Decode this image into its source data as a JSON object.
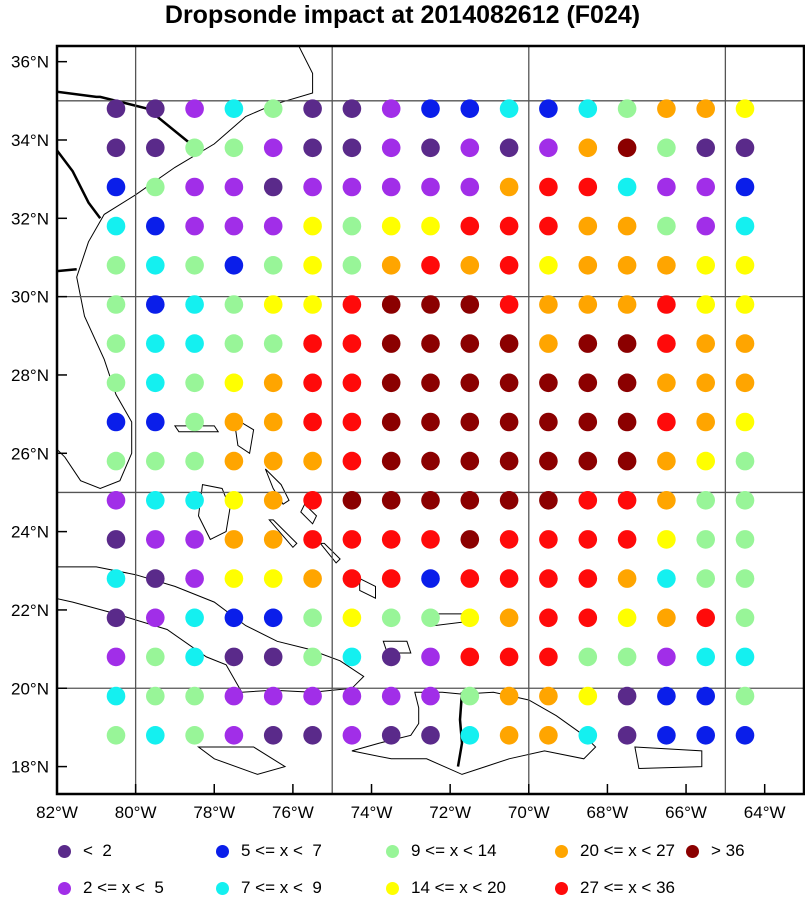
{
  "title": "Dropsonde impact at 2014082612 (F024)",
  "map": {
    "lon_ticks": [
      "82°W",
      "80°W",
      "78°W",
      "76°W",
      "74°W",
      "72°W",
      "70°W",
      "68°W",
      "66°W",
      "64°W"
    ],
    "lat_ticks": [
      "18°N",
      "20°N",
      "22°N",
      "24°N",
      "26°N",
      "28°N",
      "30°N",
      "32°N",
      "34°N",
      "36°N"
    ],
    "lon_range": [
      -82,
      -63
    ],
    "lat_range": [
      17.3,
      36.4
    ],
    "grid_lons": [
      -80,
      -75,
      -70,
      -65
    ],
    "grid_lats": [
      20,
      25,
      30,
      35
    ]
  },
  "legend": [
    {
      "label": "<  2",
      "color": "#5a2a8a"
    },
    {
      "label": "2 <= x <  5",
      "color": "#a12ee8"
    },
    {
      "label": "5 <= x <  7",
      "color": "#0a1eea"
    },
    {
      "label": "7 <= x <  9",
      "color": "#14f0f0"
    },
    {
      "label": "9 <= x < 14",
      "color": "#98f598"
    },
    {
      "label": "14 <= x < 20",
      "color": "#ffff00"
    },
    {
      "label": "20 <= x < 27",
      "color": "#ffa500"
    },
    {
      "label": "27 <= x < 36",
      "color": "#ff0a0a"
    },
    {
      "label": "> 36",
      "color": "#8b0000"
    }
  ],
  "chart_data": {
    "type": "scatter",
    "title": "Dropsonde impact at 2014082612 (F024)",
    "x_lons": [
      -80.5,
      -79.5,
      -78.5,
      -77.5,
      -76.5,
      -75.5,
      -74.5,
      -73.5,
      -72.5,
      -71.5,
      -70.5,
      -69.5,
      -68.5,
      -67.5,
      -66.5,
      -65.5,
      -64.5
    ],
    "y_lats": [
      34.8,
      33.8,
      32.8,
      31.8,
      30.8,
      29.8,
      28.8,
      27.8,
      26.8,
      25.8,
      24.8,
      23.8,
      22.8,
      21.8,
      20.8,
      19.8,
      18.8
    ],
    "categories": [
      [
        0,
        0,
        1,
        3,
        4,
        0,
        0,
        1,
        2,
        2,
        3,
        2,
        3,
        4,
        6,
        6,
        5
      ],
      [
        0,
        0,
        4,
        4,
        1,
        0,
        0,
        1,
        0,
        1,
        0,
        1,
        6,
        8,
        4,
        0,
        0
      ],
      [
        2,
        4,
        1,
        1,
        0,
        1,
        1,
        1,
        1,
        1,
        6,
        7,
        7,
        3,
        1,
        1,
        2
      ],
      [
        3,
        2,
        1,
        1,
        1,
        5,
        4,
        5,
        5,
        7,
        7,
        7,
        6,
        6,
        4,
        1,
        3
      ],
      [
        4,
        3,
        4,
        2,
        4,
        5,
        4,
        6,
        7,
        6,
        7,
        5,
        6,
        6,
        6,
        5,
        5
      ],
      [
        4,
        2,
        3,
        4,
        5,
        5,
        7,
        8,
        8,
        8,
        7,
        6,
        6,
        6,
        7,
        5,
        5
      ],
      [
        4,
        3,
        3,
        4,
        4,
        7,
        7,
        8,
        8,
        8,
        8,
        6,
        8,
        8,
        7,
        6,
        6
      ],
      [
        4,
        3,
        4,
        5,
        6,
        7,
        7,
        8,
        8,
        8,
        8,
        8,
        8,
        8,
        6,
        6,
        6
      ],
      [
        2,
        2,
        4,
        6,
        6,
        7,
        7,
        8,
        8,
        8,
        8,
        8,
        8,
        8,
        7,
        6,
        5
      ],
      [
        4,
        4,
        4,
        6,
        6,
        6,
        7,
        8,
        8,
        8,
        8,
        8,
        8,
        8,
        6,
        5,
        4
      ],
      [
        1,
        3,
        3,
        5,
        6,
        7,
        8,
        8,
        8,
        8,
        8,
        8,
        7,
        7,
        6,
        4,
        4
      ],
      [
        0,
        1,
        1,
        6,
        6,
        7,
        7,
        7,
        7,
        8,
        7,
        7,
        7,
        7,
        5,
        4,
        4
      ],
      [
        3,
        0,
        1,
        5,
        5,
        6,
        7,
        7,
        2,
        7,
        7,
        7,
        7,
        6,
        3,
        4,
        4
      ],
      [
        0,
        1,
        3,
        2,
        2,
        4,
        5,
        4,
        4,
        5,
        6,
        7,
        7,
        5,
        6,
        7,
        4
      ],
      [
        1,
        4,
        3,
        0,
        0,
        4,
        3,
        0,
        1,
        7,
        7,
        7,
        4,
        4,
        1,
        3,
        3
      ],
      [
        3,
        4,
        4,
        1,
        1,
        1,
        1,
        1,
        1,
        4,
        6,
        6,
        5,
        0,
        2,
        2,
        4
      ],
      [
        4,
        3,
        4,
        1,
        0,
        0,
        1,
        0,
        0,
        3,
        6,
        6,
        3,
        0,
        2,
        2,
        2
      ]
    ]
  }
}
